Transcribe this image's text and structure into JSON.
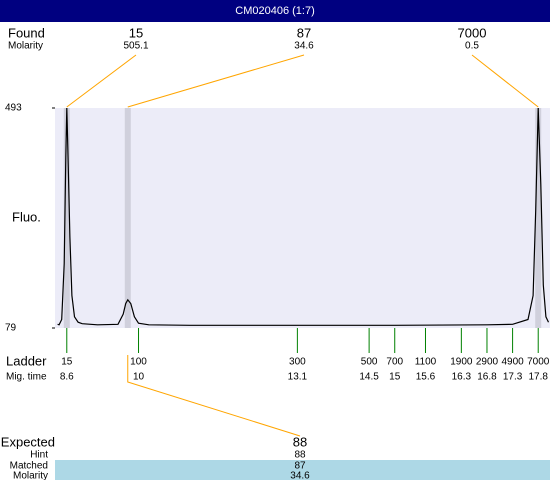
{
  "chart_data": {
    "type": "line",
    "title": "CM020406 (1:7)",
    "y_label": "Fluo.",
    "ylim": [
      79,
      493
    ],
    "yticks": [
      79,
      493
    ],
    "xlim": [
      8.37,
      18.03
    ],
    "trace": {
      "color": "#000000",
      "x": [
        8.42,
        8.45,
        8.5,
        8.55,
        8.58,
        8.6,
        8.62,
        8.66,
        8.7,
        8.75,
        8.82,
        8.9,
        9.2,
        9.6,
        9.7,
        9.75,
        9.79,
        9.85,
        9.92,
        10.0,
        10.2,
        11.0,
        13.0,
        15.0,
        16.8,
        17.3,
        17.6,
        17.7,
        17.75,
        17.8,
        17.85,
        17.9,
        17.95,
        18.0
      ],
      "y": [
        86,
        85,
        95,
        200,
        400,
        493,
        420,
        250,
        140,
        100,
        90,
        87,
        85,
        86,
        105,
        125,
        132,
        125,
        100,
        88,
        85,
        84,
        84,
        84,
        85,
        86,
        95,
        140,
        300,
        493,
        350,
        160,
        100,
        90
      ]
    },
    "found": {
      "label": "Found",
      "molarity_label": "Molarity",
      "color": "#ffa500",
      "band_color": "#d0d0dc",
      "sizes": [
        15,
        87,
        7000
      ],
      "molarities": [
        505.1,
        34.6,
        0.5
      ],
      "times": [
        8.6,
        9.79,
        17.8
      ]
    },
    "ladder": {
      "label": "Ladder",
      "time_label": "Mig. time",
      "color": "#008000",
      "sizes": [
        15,
        100,
        300,
        500,
        700,
        1100,
        1900,
        2900,
        4900,
        7000
      ],
      "times": [
        8.6,
        10,
        13.1,
        14.5,
        15,
        15.6,
        16.3,
        16.8,
        17.3,
        17.8
      ]
    },
    "expected": {
      "label": "Expected",
      "value": 88,
      "hint_label": "Hint",
      "hint": 88,
      "matched_label": "Matched",
      "matched": 87,
      "molarity_label": "Molarity",
      "molarity": 34.6
    }
  }
}
